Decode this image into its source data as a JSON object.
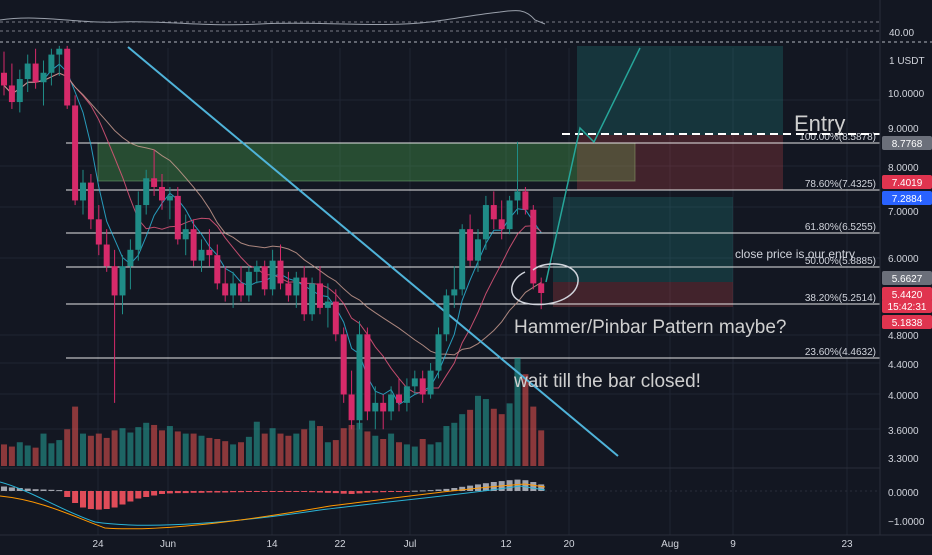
{
  "theme": {
    "background": "#131722",
    "grid": "#1f2433",
    "text": "#d1d4dc",
    "up": "#26a69a",
    "down": "#ef5350",
    "upCandle": "#1f8c87",
    "downCandle": "#d62a6a",
    "fibLine": "#e6e6e6",
    "trendline": "#4fb3d9",
    "sma1": "#2bb3d6",
    "sma2": "#e0567a",
    "sma3": "#c79a8e",
    "annotation": "#cfcfcf"
  },
  "price_axis": {
    "unit_badge": "1 USDT",
    "rsi_level": "40.00",
    "ticks": [
      "10.0000",
      "9.0000",
      "8.0000",
      "7.0000",
      "6.0000",
      "4.8000",
      "4.4000",
      "4.0000",
      "3.6000",
      "3.3000"
    ],
    "macd_ticks": [
      "0.0000",
      "−1.0000"
    ],
    "badges": [
      {
        "label": "8.7768",
        "color": "#6b6f7a"
      },
      {
        "label": "7.4019",
        "color": "#e0344f"
      },
      {
        "label": "7.2884",
        "color": "#2962ff"
      },
      {
        "label": "5.6627",
        "color": "#6b6f7a"
      },
      {
        "label": "5.4420",
        "color": "#e0344f"
      },
      {
        "label": "15:42:31",
        "color": "#e0344f"
      },
      {
        "label": "5.1838",
        "color": "#e0344f"
      }
    ]
  },
  "time_axis": {
    "ticks": [
      "24",
      "Jun",
      "14",
      "22",
      "Jul",
      "12",
      "20",
      "Aug",
      "9",
      "23"
    ]
  },
  "fib_levels": [
    {
      "label": "100.00%(8.5878)",
      "price": 8.5878
    },
    {
      "label": "78.60%(7.4325)",
      "price": 7.4325
    },
    {
      "label": "61.80%(6.5255)",
      "price": 6.5255
    },
    {
      "label": "50.00%(5.8885)",
      "price": 5.8885
    },
    {
      "label": "38.20%(5.2514)",
      "price": 5.2514
    },
    {
      "label": "23.60%(4.4632)",
      "price": 4.4632
    }
  ],
  "annotations": {
    "entry": "Entry",
    "close_note": "close price is our entry",
    "hammer_note": "Hammer/Pinbar Pattern maybe?",
    "wait_note": "wait till the bar closed!"
  },
  "chart_data": {
    "type": "candlestick",
    "symbol_unit": "USDT",
    "scale": "log",
    "ylim": [
      3.25,
      11.5
    ],
    "x_labels": [
      "24",
      "Jun",
      "14",
      "22",
      "Jul",
      "12",
      "20",
      "Aug",
      "9",
      "23"
    ],
    "candles": [
      {
        "o": 10.6,
        "h": 11.3,
        "l": 9.9,
        "c": 10.2
      },
      {
        "o": 10.2,
        "h": 10.9,
        "l": 9.5,
        "c": 9.7
      },
      {
        "o": 9.7,
        "h": 10.7,
        "l": 9.4,
        "c": 10.4
      },
      {
        "o": 10.4,
        "h": 11.2,
        "l": 10.0,
        "c": 10.9
      },
      {
        "o": 10.9,
        "h": 11.4,
        "l": 10.1,
        "c": 10.3
      },
      {
        "o": 10.3,
        "h": 11.0,
        "l": 9.6,
        "c": 10.6
      },
      {
        "o": 10.6,
        "h": 11.4,
        "l": 10.2,
        "c": 11.2
      },
      {
        "o": 11.2,
        "h": 11.5,
        "l": 10.5,
        "c": 11.4
      },
      {
        "o": 11.4,
        "h": 11.5,
        "l": 9.5,
        "c": 9.6
      },
      {
        "o": 9.6,
        "h": 9.9,
        "l": 7.1,
        "c": 7.2
      },
      {
        "o": 7.2,
        "h": 7.9,
        "l": 6.9,
        "c": 7.6
      },
      {
        "o": 7.6,
        "h": 7.8,
        "l": 6.6,
        "c": 6.8
      },
      {
        "o": 6.8,
        "h": 7.1,
        "l": 6.1,
        "c": 6.3
      },
      {
        "o": 6.3,
        "h": 6.6,
        "l": 5.8,
        "c": 5.9
      },
      {
        "o": 5.9,
        "h": 6.2,
        "l": 3.9,
        "c": 5.4
      },
      {
        "o": 5.4,
        "h": 6.1,
        "l": 5.1,
        "c": 5.9
      },
      {
        "o": 5.9,
        "h": 6.4,
        "l": 5.5,
        "c": 6.2
      },
      {
        "o": 6.2,
        "h": 7.4,
        "l": 6.0,
        "c": 7.1
      },
      {
        "o": 7.1,
        "h": 7.9,
        "l": 6.9,
        "c": 7.7
      },
      {
        "o": 7.7,
        "h": 8.4,
        "l": 7.3,
        "c": 7.5
      },
      {
        "o": 7.5,
        "h": 7.8,
        "l": 7.0,
        "c": 7.2
      },
      {
        "o": 7.2,
        "h": 7.5,
        "l": 6.8,
        "c": 7.3
      },
      {
        "o": 7.3,
        "h": 7.5,
        "l": 6.3,
        "c": 6.4
      },
      {
        "o": 6.4,
        "h": 6.9,
        "l": 6.1,
        "c": 6.6
      },
      {
        "o": 6.6,
        "h": 6.8,
        "l": 5.9,
        "c": 6.0
      },
      {
        "o": 6.0,
        "h": 6.4,
        "l": 5.8,
        "c": 6.2
      },
      {
        "o": 6.2,
        "h": 6.6,
        "l": 5.9,
        "c": 6.1
      },
      {
        "o": 6.1,
        "h": 6.3,
        "l": 5.5,
        "c": 5.6
      },
      {
        "o": 5.6,
        "h": 5.9,
        "l": 5.3,
        "c": 5.4
      },
      {
        "o": 5.4,
        "h": 5.8,
        "l": 5.2,
        "c": 5.6
      },
      {
        "o": 5.6,
        "h": 5.9,
        "l": 5.3,
        "c": 5.4
      },
      {
        "o": 5.4,
        "h": 5.9,
        "l": 5.3,
        "c": 5.8
      },
      {
        "o": 5.8,
        "h": 6.0,
        "l": 5.6,
        "c": 5.9
      },
      {
        "o": 5.9,
        "h": 6.0,
        "l": 5.4,
        "c": 5.5
      },
      {
        "o": 5.5,
        "h": 6.2,
        "l": 5.4,
        "c": 6.0
      },
      {
        "o": 6.0,
        "h": 6.3,
        "l": 5.5,
        "c": 5.6
      },
      {
        "o": 5.6,
        "h": 5.8,
        "l": 5.3,
        "c": 5.4
      },
      {
        "o": 5.4,
        "h": 5.8,
        "l": 5.2,
        "c": 5.7
      },
      {
        "o": 5.7,
        "h": 5.9,
        "l": 5.0,
        "c": 5.1
      },
      {
        "o": 5.1,
        "h": 5.7,
        "l": 5.0,
        "c": 5.6
      },
      {
        "o": 5.6,
        "h": 5.9,
        "l": 5.1,
        "c": 5.2
      },
      {
        "o": 5.2,
        "h": 5.6,
        "l": 4.9,
        "c": 5.3
      },
      {
        "o": 5.3,
        "h": 5.5,
        "l": 4.7,
        "c": 4.8
      },
      {
        "o": 4.8,
        "h": 4.9,
        "l": 3.9,
        "c": 4.0
      },
      {
        "o": 4.0,
        "h": 4.3,
        "l": 3.6,
        "c": 3.7
      },
      {
        "o": 3.7,
        "h": 5.0,
        "l": 3.6,
        "c": 4.8
      },
      {
        "o": 4.8,
        "h": 4.9,
        "l": 3.7,
        "c": 3.8
      },
      {
        "o": 3.8,
        "h": 4.1,
        "l": 3.6,
        "c": 3.9
      },
      {
        "o": 3.9,
        "h": 4.0,
        "l": 3.6,
        "c": 3.8
      },
      {
        "o": 3.8,
        "h": 4.1,
        "l": 3.7,
        "c": 4.0
      },
      {
        "o": 4.0,
        "h": 4.2,
        "l": 3.8,
        "c": 3.9
      },
      {
        "o": 3.9,
        "h": 4.2,
        "l": 3.8,
        "c": 4.1
      },
      {
        "o": 4.1,
        "h": 4.3,
        "l": 4.0,
        "c": 4.2
      },
      {
        "o": 4.2,
        "h": 4.3,
        "l": 3.9,
        "c": 4.0
      },
      {
        "o": 4.0,
        "h": 4.4,
        "l": 3.95,
        "c": 4.3
      },
      {
        "o": 4.3,
        "h": 4.9,
        "l": 4.2,
        "c": 4.8
      },
      {
        "o": 4.8,
        "h": 5.5,
        "l": 4.7,
        "c": 5.4
      },
      {
        "o": 5.4,
        "h": 5.9,
        "l": 5.2,
        "c": 5.5
      },
      {
        "o": 5.5,
        "h": 6.7,
        "l": 5.4,
        "c": 6.6
      },
      {
        "o": 6.6,
        "h": 6.9,
        "l": 5.9,
        "c": 6.0
      },
      {
        "o": 6.0,
        "h": 6.6,
        "l": 5.8,
        "c": 6.4
      },
      {
        "o": 6.4,
        "h": 7.3,
        "l": 6.2,
        "c": 7.1
      },
      {
        "o": 7.1,
        "h": 7.4,
        "l": 6.6,
        "c": 6.8
      },
      {
        "o": 6.8,
        "h": 7.2,
        "l": 6.4,
        "c": 6.6
      },
      {
        "o": 6.6,
        "h": 7.3,
        "l": 6.5,
        "c": 7.2
      },
      {
        "o": 7.2,
        "h": 8.6,
        "l": 6.9,
        "c": 7.4
      },
      {
        "o": 7.4,
        "h": 7.5,
        "l": 6.9,
        "c": 7.0
      },
      {
        "o": 7.0,
        "h": 7.1,
        "l": 5.5,
        "c": 5.6
      },
      {
        "o": 5.6,
        "h": 5.7,
        "l": 5.18,
        "c": 5.44
      }
    ],
    "volume": [
      0.2,
      0.18,
      0.22,
      0.19,
      0.17,
      0.3,
      0.21,
      0.24,
      0.34,
      0.55,
      0.3,
      0.28,
      0.3,
      0.26,
      0.33,
      0.35,
      0.31,
      0.36,
      0.4,
      0.38,
      0.33,
      0.37,
      0.32,
      0.3,
      0.3,
      0.28,
      0.26,
      0.25,
      0.23,
      0.2,
      0.22,
      0.27,
      0.41,
      0.3,
      0.35,
      0.3,
      0.28,
      0.3,
      0.34,
      0.42,
      0.37,
      0.22,
      0.24,
      0.35,
      0.38,
      0.4,
      0.32,
      0.28,
      0.25,
      0.3,
      0.22,
      0.2,
      0.18,
      0.25,
      0.2,
      0.22,
      0.37,
      0.4,
      0.48,
      0.52,
      0.65,
      0.62,
      0.53,
      0.48,
      0.58,
      1.0,
      0.85,
      0.55,
      0.33
    ],
    "macd_hist": [
      0.15,
      0.12,
      0.1,
      0.08,
      0.06,
      0.05,
      0.04,
      0.03,
      -0.2,
      -0.4,
      -0.55,
      -0.6,
      -0.62,
      -0.6,
      -0.55,
      -0.45,
      -0.35,
      -0.25,
      -0.2,
      -0.15,
      -0.1,
      -0.08,
      -0.07,
      -0.07,
      -0.06,
      -0.06,
      -0.05,
      -0.05,
      -0.05,
      -0.04,
      -0.04,
      -0.03,
      -0.03,
      -0.03,
      -0.02,
      -0.02,
      -0.02,
      -0.03,
      -0.03,
      -0.04,
      -0.05,
      -0.06,
      -0.07,
      -0.09,
      -0.1,
      -0.08,
      -0.06,
      -0.05,
      -0.04,
      -0.03,
      -0.02,
      -0.01,
      0.01,
      0.02,
      0.03,
      0.05,
      0.07,
      0.1,
      0.14,
      0.18,
      0.22,
      0.26,
      0.3,
      0.33,
      0.36,
      0.38,
      0.36,
      0.3,
      0.22
    ]
  }
}
